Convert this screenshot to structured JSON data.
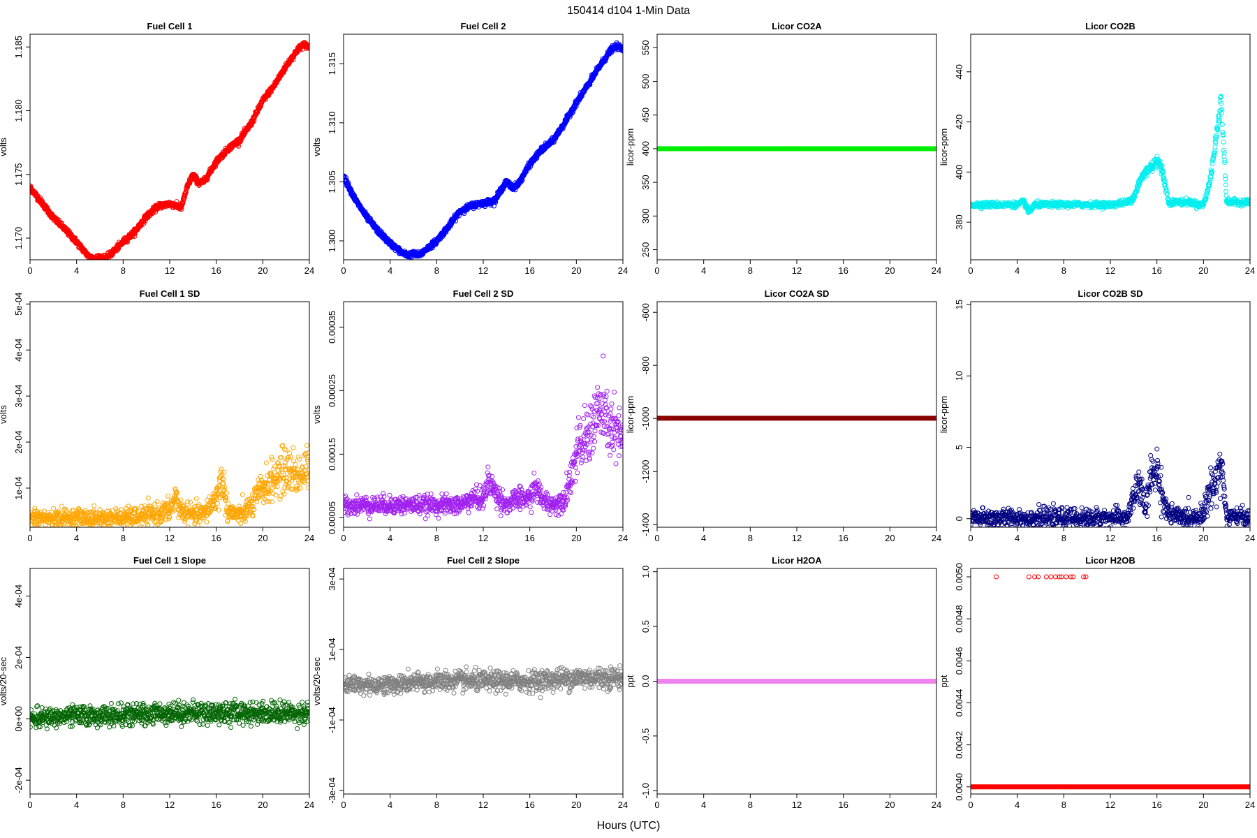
{
  "figure": {
    "title": "150414   d104   1-Min Data",
    "xlabel": "Hours (UTC)"
  },
  "chart_data": [
    {
      "type": "scatter",
      "title": "Fuel Cell 1",
      "ylabel": "volts",
      "color": "#ff0000",
      "xlim": [
        0,
        24
      ],
      "ylim": [
        1.1683,
        1.186
      ],
      "xticks": [
        "0",
        "4",
        "8",
        "12",
        "16",
        "20",
        "24"
      ],
      "yticks": [
        "1.170",
        "1.175",
        "1.180",
        "1.185"
      ],
      "series": [
        {
          "x": [
            0,
            1,
            2,
            3,
            4,
            5,
            5.5,
            6,
            6.5,
            7,
            8,
            9,
            10,
            11,
            12,
            13,
            13.5,
            14,
            14.5,
            15,
            16,
            17,
            18,
            19,
            20,
            21,
            22,
            23,
            23.5,
            24
          ],
          "y": [
            1.174,
            1.1728,
            1.1716,
            1.1707,
            1.1697,
            1.1686,
            1.1684,
            1.1685,
            1.1684,
            1.1688,
            1.1697,
            1.1705,
            1.1717,
            1.1725,
            1.1727,
            1.1724,
            1.174,
            1.175,
            1.1743,
            1.1745,
            1.176,
            1.177,
            1.1777,
            1.179,
            1.1808,
            1.182,
            1.1835,
            1.1848,
            1.1852,
            1.185
          ]
        }
      ]
    },
    {
      "type": "scatter",
      "title": "Fuel Cell 2",
      "ylabel": "volts",
      "color": "#0000ff",
      "xlim": [
        0,
        24
      ],
      "ylim": [
        1.2984,
        1.3175
      ],
      "xticks": [
        "0",
        "4",
        "8",
        "12",
        "16",
        "20",
        "24"
      ],
      "yticks": [
        "1.300",
        "1.305",
        "1.310",
        "1.315"
      ],
      "series": [
        {
          "x": [
            0,
            1,
            2,
            3,
            4,
            5,
            5.5,
            6,
            6.5,
            7,
            8,
            9,
            10,
            11,
            12,
            13,
            13.5,
            14,
            14.5,
            15,
            16,
            17,
            18,
            19,
            20,
            21,
            22,
            23,
            23.5,
            24
          ],
          "y": [
            1.3055,
            1.3035,
            1.302,
            1.3008,
            1.2998,
            1.299,
            1.2988,
            1.2989,
            1.2988,
            1.2992,
            1.3,
            1.3012,
            1.3025,
            1.303,
            1.3032,
            1.3034,
            1.3043,
            1.305,
            1.3045,
            1.3048,
            1.3065,
            1.3077,
            1.3085,
            1.31,
            1.3117,
            1.3132,
            1.3148,
            1.3162,
            1.3165,
            1.3162
          ]
        }
      ]
    },
    {
      "type": "scatter",
      "title": "Licor CO2A",
      "ylabel": "licor-ppm",
      "color": "#00ee00",
      "xlim": [
        0,
        24
      ],
      "ylim": [
        235,
        570
      ],
      "xticks": [
        "0",
        "4",
        "8",
        "12",
        "16",
        "20",
        "24"
      ],
      "yticks": [
        "250",
        "300",
        "350",
        "400",
        "450",
        "500",
        "550"
      ],
      "series": [
        {
          "x": [
            0,
            24
          ],
          "y": [
            400,
            400
          ]
        }
      ]
    },
    {
      "type": "scatter",
      "title": "Licor CO2B",
      "ylabel": "licor-ppm",
      "color": "#00eeee",
      "xlim": [
        0,
        24
      ],
      "ylim": [
        365,
        455
      ],
      "xticks": [
        "0",
        "4",
        "8",
        "12",
        "16",
        "20",
        "24"
      ],
      "yticks": [
        "380",
        "400",
        "420",
        "440"
      ],
      "series": [
        {
          "x": [
            0,
            1,
            2,
            3,
            4,
            4.6,
            5,
            5.5,
            6,
            8,
            10,
            12,
            13.5,
            14,
            14.5,
            15,
            15.5,
            16,
            16.5,
            17,
            18,
            19,
            19.5,
            20,
            20.5,
            21,
            21.5,
            22,
            23,
            24
          ],
          "y": [
            387,
            387,
            387,
            387,
            387,
            388,
            384,
            387,
            387,
            387,
            387,
            387,
            388,
            390,
            396,
            400,
            402,
            405,
            400,
            388,
            388,
            388,
            387,
            387,
            395,
            410,
            430,
            388,
            388,
            388
          ]
        }
      ]
    },
    {
      "type": "scatter",
      "title": "Fuel Cell 1 SD",
      "ylabel": "volts",
      "color": "#ffa500",
      "xlim": [
        0,
        24
      ],
      "ylim": [
        1.5e-05,
        0.000505
      ],
      "xticks": [
        "0",
        "4",
        "8",
        "12",
        "16",
        "20",
        "24"
      ],
      "yticks": [
        "1e-04",
        "2e-04",
        "3e-04",
        "4e-04",
        "5e-04"
      ],
      "series": [
        {
          "x": [
            0,
            2,
            4,
            6,
            8,
            10,
            11,
            12,
            12.5,
            13,
            14,
            15,
            16,
            16.5,
            17,
            18,
            19,
            20,
            21,
            22,
            23,
            24
          ],
          "y": [
            3.5e-05,
            3.5e-05,
            3.5e-05,
            3.5e-05,
            3.5e-05,
            4e-05,
            4.5e-05,
            5e-05,
            8e-05,
            5e-05,
            4e-05,
            4.5e-05,
            8e-05,
            0.00012,
            5e-05,
            4e-05,
            6e-05,
            0.0001,
            0.00012,
            0.00014,
            0.00013,
            0.00014
          ]
        }
      ]
    },
    {
      "type": "scatter",
      "title": "Fuel Cell 2 SD",
      "ylabel": "volts",
      "color": "#a020f0",
      "xlim": [
        0,
        24
      ],
      "ylim": [
        3.5e-05,
        0.00039
      ],
      "xticks": [
        "0",
        "4",
        "8",
        "12",
        "16",
        "20",
        "24"
      ],
      "yticks": [
        "0.00005",
        "0.00015",
        "0.00025",
        "0.00035"
      ],
      "series": [
        {
          "x": [
            0,
            2,
            4,
            6,
            8,
            10,
            11,
            12,
            12.5,
            13,
            14,
            15,
            16,
            16.5,
            17,
            18,
            19,
            20,
            21,
            22,
            23,
            24
          ],
          "y": [
            7e-05,
            7e-05,
            7e-05,
            7e-05,
            7e-05,
            7e-05,
            8e-05,
            8e-05,
            0.00011,
            9e-05,
            7e-05,
            8e-05,
            8e-05,
            0.0001,
            8e-05,
            7e-05,
            8e-05,
            0.00015,
            0.00018,
            0.00022,
            0.00019,
            0.00017
          ]
        }
      ]
    },
    {
      "type": "scatter",
      "title": "Licor CO2A SD",
      "ylabel": "licor-ppm",
      "color": "#8b0000",
      "xlim": [
        0,
        24
      ],
      "ylim": [
        -1410,
        -560
      ],
      "xticks": [
        "0",
        "4",
        "8",
        "12",
        "16",
        "20",
        "24"
      ],
      "yticks": [
        "-1400",
        "-1200",
        "-1000",
        "-800",
        "-600"
      ],
      "series": [
        {
          "x": [
            0,
            24
          ],
          "y": [
            -999,
            -999
          ]
        }
      ]
    },
    {
      "type": "scatter",
      "title": "Licor CO2B SD",
      "ylabel": "licor-ppm",
      "color": "#000080",
      "xlim": [
        0,
        24
      ],
      "ylim": [
        -0.6,
        15.2
      ],
      "xticks": [
        "0",
        "4",
        "8",
        "12",
        "16",
        "20",
        "24"
      ],
      "yticks": [
        "0",
        "5",
        "10",
        "15"
      ],
      "series": [
        {
          "x": [
            0,
            4,
            8,
            12,
            13.5,
            14,
            14.5,
            15,
            15.5,
            16,
            16.5,
            17,
            18,
            19,
            20,
            20.5,
            21,
            21.5,
            22,
            23,
            24
          ],
          "y": [
            0.05,
            0.05,
            0.05,
            0.05,
            0.1,
            1.5,
            2.5,
            0.5,
            3,
            3.5,
            1.5,
            0.3,
            0.1,
            0.1,
            0.3,
            2,
            2.5,
            4,
            0.1,
            0.1,
            0.1
          ]
        }
      ]
    },
    {
      "type": "scatter",
      "title": "Fuel Cell 1 Slope",
      "ylabel": "volts/20-sec",
      "color": "#006400",
      "xlim": [
        0,
        24
      ],
      "ylim": [
        -0.000245,
        0.00049
      ],
      "xticks": [
        "0",
        "4",
        "8",
        "12",
        "16",
        "20",
        "24"
      ],
      "yticks": [
        "-2e-04",
        "0e+00",
        "2e-04",
        "4e-04"
      ],
      "series": [
        {
          "x": [
            0,
            4,
            8,
            12,
            16,
            20,
            24
          ],
          "y": [
            0.0,
            1e-05,
            1e-05,
            2e-05,
            2e-05,
            2e-05,
            2e-05
          ]
        }
      ]
    },
    {
      "type": "scatter",
      "title": "Fuel Cell 2 Slope",
      "ylabel": "volts/20-sec",
      "color": "#808080",
      "xlim": [
        0,
        24
      ],
      "ylim": [
        -0.00031,
        0.00033
      ],
      "xticks": [
        "0",
        "4",
        "8",
        "12",
        "16",
        "20",
        "24"
      ],
      "yticks": [
        "-3e-04",
        "-1e-04",
        "1e-04",
        "3e-04"
      ],
      "series": [
        {
          "x": [
            0,
            4,
            8,
            12,
            16,
            20,
            24
          ],
          "y": [
            0.0,
            0.0,
            1e-05,
            1e-05,
            1e-05,
            2e-05,
            2e-05
          ]
        }
      ]
    },
    {
      "type": "scatter",
      "title": "Licor H2OA",
      "ylabel": "ppt",
      "color": "#ee82ee",
      "xlim": [
        0,
        24
      ],
      "ylim": [
        -1.03,
        1.03
      ],
      "xticks": [
        "0",
        "4",
        "8",
        "12",
        "16",
        "20",
        "24"
      ],
      "yticks": [
        "-1.0",
        "-0.5",
        "0.0",
        "0.5",
        "1.0"
      ],
      "series": [
        {
          "x": [
            0,
            24
          ],
          "y": [
            0,
            0
          ]
        }
      ]
    },
    {
      "type": "scatter",
      "title": "Licor H2OB",
      "ylabel": "ppt",
      "color": "#ff0000",
      "xlim": [
        0,
        24
      ],
      "ylim": [
        0.003966,
        0.00504
      ],
      "xticks": [
        "0",
        "4",
        "8",
        "12",
        "16",
        "20",
        "24"
      ],
      "yticks": [
        "0.0040",
        "0.0042",
        "0.0044",
        "0.0046",
        "0.0048",
        "0.0050"
      ],
      "series": [
        {
          "x": [
            0,
            24
          ],
          "y": [
            0.004,
            0.004
          ]
        },
        {
          "x": [
            2.2,
            5.0,
            5.5,
            5.8,
            6.5,
            6.9,
            7.3,
            7.6,
            7.8,
            8.2,
            8.6,
            8.8,
            9.7,
            9.9
          ],
          "y": [
            0.005,
            0.005,
            0.005,
            0.005,
            0.005,
            0.005,
            0.005,
            0.005,
            0.005,
            0.005,
            0.005,
            0.005,
            0.005,
            0.005
          ]
        }
      ]
    }
  ]
}
